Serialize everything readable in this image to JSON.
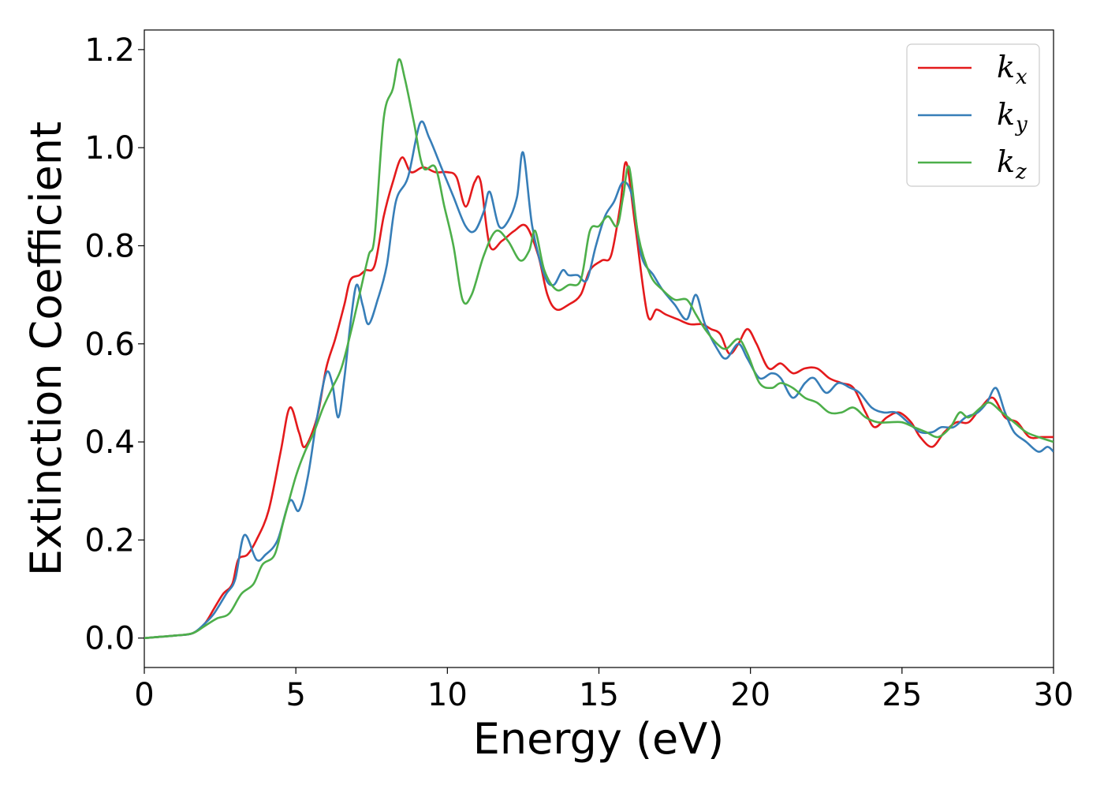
{
  "chart_data": {
    "type": "line",
    "xlabel": "Energy (eV)",
    "ylabel": "Extinction Coefficient",
    "xlim": [
      0,
      30
    ],
    "ylim": [
      -0.06,
      1.24
    ],
    "xticks": [
      0,
      5,
      10,
      15,
      20,
      25,
      30
    ],
    "yticks": [
      0.0,
      0.2,
      0.4,
      0.6,
      0.8,
      1.0,
      1.2
    ],
    "xtick_labels": [
      "0",
      "5",
      "10",
      "15",
      "20",
      "25",
      "30"
    ],
    "ytick_labels": [
      "0.0",
      "0.2",
      "0.4",
      "0.6",
      "0.8",
      "1.0",
      "1.2"
    ],
    "grid": false,
    "legend_position": "top-right",
    "series": [
      {
        "name": "kx",
        "label_main": "k",
        "label_sub": "x",
        "color": "#e41a1c",
        "points": [
          [
            0,
            0
          ],
          [
            1,
            0.005
          ],
          [
            1.6,
            0.01
          ],
          [
            2,
            0.03
          ],
          [
            2.3,
            0.06
          ],
          [
            2.6,
            0.09
          ],
          [
            2.9,
            0.11
          ],
          [
            3.1,
            0.16
          ],
          [
            3.4,
            0.17
          ],
          [
            3.7,
            0.2
          ],
          [
            4.1,
            0.26
          ],
          [
            4.5,
            0.38
          ],
          [
            4.8,
            0.47
          ],
          [
            5.1,
            0.42
          ],
          [
            5.3,
            0.39
          ],
          [
            5.7,
            0.45
          ],
          [
            6.0,
            0.55
          ],
          [
            6.3,
            0.61
          ],
          [
            6.6,
            0.68
          ],
          [
            6.8,
            0.73
          ],
          [
            7.1,
            0.74
          ],
          [
            7.3,
            0.75
          ],
          [
            7.6,
            0.76
          ],
          [
            7.9,
            0.86
          ],
          [
            8.2,
            0.93
          ],
          [
            8.5,
            0.98
          ],
          [
            8.8,
            0.95
          ],
          [
            9.2,
            0.96
          ],
          [
            9.6,
            0.95
          ],
          [
            10.0,
            0.95
          ],
          [
            10.3,
            0.94
          ],
          [
            10.6,
            0.88
          ],
          [
            10.9,
            0.93
          ],
          [
            11.1,
            0.93
          ],
          [
            11.4,
            0.8
          ],
          [
            11.8,
            0.81
          ],
          [
            12.2,
            0.83
          ],
          [
            12.6,
            0.84
          ],
          [
            13.0,
            0.78
          ],
          [
            13.3,
            0.7
          ],
          [
            13.6,
            0.67
          ],
          [
            14.0,
            0.68
          ],
          [
            14.4,
            0.7
          ],
          [
            14.7,
            0.75
          ],
          [
            15.1,
            0.77
          ],
          [
            15.4,
            0.78
          ],
          [
            15.7,
            0.88
          ],
          [
            15.9,
            0.97
          ],
          [
            16.2,
            0.84
          ],
          [
            16.6,
            0.66
          ],
          [
            16.9,
            0.67
          ],
          [
            17.2,
            0.66
          ],
          [
            17.6,
            0.65
          ],
          [
            18.0,
            0.64
          ],
          [
            18.4,
            0.64
          ],
          [
            18.7,
            0.63
          ],
          [
            19.0,
            0.62
          ],
          [
            19.3,
            0.58
          ],
          [
            19.6,
            0.6
          ],
          [
            19.9,
            0.63
          ],
          [
            20.2,
            0.6
          ],
          [
            20.6,
            0.55
          ],
          [
            21.0,
            0.56
          ],
          [
            21.4,
            0.54
          ],
          [
            21.8,
            0.55
          ],
          [
            22.2,
            0.55
          ],
          [
            22.6,
            0.53
          ],
          [
            23.0,
            0.52
          ],
          [
            23.4,
            0.51
          ],
          [
            23.8,
            0.46
          ],
          [
            24.1,
            0.43
          ],
          [
            24.5,
            0.45
          ],
          [
            24.9,
            0.46
          ],
          [
            25.3,
            0.44
          ],
          [
            25.6,
            0.41
          ],
          [
            26.0,
            0.39
          ],
          [
            26.4,
            0.42
          ],
          [
            26.8,
            0.44
          ],
          [
            27.2,
            0.44
          ],
          [
            27.6,
            0.47
          ],
          [
            28.0,
            0.49
          ],
          [
            28.4,
            0.45
          ],
          [
            28.8,
            0.44
          ],
          [
            29.2,
            0.41
          ],
          [
            29.6,
            0.41
          ],
          [
            30,
            0.41
          ]
        ]
      },
      {
        "name": "ky",
        "label_main": "k",
        "label_sub": "y",
        "color": "#377eb8",
        "points": [
          [
            0,
            0
          ],
          [
            1,
            0.005
          ],
          [
            1.6,
            0.01
          ],
          [
            2,
            0.03
          ],
          [
            2.3,
            0.05
          ],
          [
            2.7,
            0.09
          ],
          [
            3.0,
            0.12
          ],
          [
            3.3,
            0.21
          ],
          [
            3.7,
            0.16
          ],
          [
            4.0,
            0.17
          ],
          [
            4.4,
            0.2
          ],
          [
            4.8,
            0.28
          ],
          [
            5.1,
            0.26
          ],
          [
            5.4,
            0.33
          ],
          [
            5.7,
            0.45
          ],
          [
            6.0,
            0.54
          ],
          [
            6.2,
            0.52
          ],
          [
            6.4,
            0.45
          ],
          [
            6.6,
            0.53
          ],
          [
            6.8,
            0.64
          ],
          [
            7.0,
            0.72
          ],
          [
            7.2,
            0.68
          ],
          [
            7.4,
            0.64
          ],
          [
            7.7,
            0.69
          ],
          [
            8.0,
            0.76
          ],
          [
            8.3,
            0.89
          ],
          [
            8.7,
            0.94
          ],
          [
            9.1,
            1.05
          ],
          [
            9.4,
            1.02
          ],
          [
            9.8,
            0.96
          ],
          [
            10.2,
            0.9
          ],
          [
            10.6,
            0.84
          ],
          [
            10.9,
            0.83
          ],
          [
            11.2,
            0.87
          ],
          [
            11.4,
            0.91
          ],
          [
            11.7,
            0.84
          ],
          [
            12.0,
            0.85
          ],
          [
            12.3,
            0.9
          ],
          [
            12.5,
            0.99
          ],
          [
            12.8,
            0.84
          ],
          [
            13.2,
            0.74
          ],
          [
            13.5,
            0.72
          ],
          [
            13.8,
            0.75
          ],
          [
            14.0,
            0.74
          ],
          [
            14.3,
            0.74
          ],
          [
            14.6,
            0.73
          ],
          [
            14.9,
            0.8
          ],
          [
            15.2,
            0.86
          ],
          [
            15.5,
            0.89
          ],
          [
            15.8,
            0.93
          ],
          [
            16.1,
            0.9
          ],
          [
            16.4,
            0.78
          ],
          [
            16.8,
            0.74
          ],
          [
            17.1,
            0.71
          ],
          [
            17.5,
            0.68
          ],
          [
            17.9,
            0.65
          ],
          [
            18.2,
            0.7
          ],
          [
            18.5,
            0.64
          ],
          [
            18.9,
            0.59
          ],
          [
            19.2,
            0.57
          ],
          [
            19.6,
            0.6
          ],
          [
            19.9,
            0.57
          ],
          [
            20.3,
            0.53
          ],
          [
            20.7,
            0.54
          ],
          [
            21.0,
            0.53
          ],
          [
            21.4,
            0.49
          ],
          [
            21.8,
            0.52
          ],
          [
            22.1,
            0.53
          ],
          [
            22.5,
            0.5
          ],
          [
            22.9,
            0.52
          ],
          [
            23.3,
            0.51
          ],
          [
            23.6,
            0.5
          ],
          [
            24.0,
            0.47
          ],
          [
            24.4,
            0.46
          ],
          [
            24.8,
            0.46
          ],
          [
            25.2,
            0.44
          ],
          [
            25.6,
            0.42
          ],
          [
            26.0,
            0.42
          ],
          [
            26.3,
            0.43
          ],
          [
            26.7,
            0.43
          ],
          [
            27.1,
            0.45
          ],
          [
            27.5,
            0.46
          ],
          [
            27.8,
            0.48
          ],
          [
            28.1,
            0.51
          ],
          [
            28.4,
            0.46
          ],
          [
            28.7,
            0.42
          ],
          [
            29.1,
            0.4
          ],
          [
            29.5,
            0.38
          ],
          [
            29.8,
            0.39
          ],
          [
            30,
            0.38
          ]
        ]
      },
      {
        "name": "kz",
        "label_main": "k",
        "label_sub": "z",
        "color": "#4daf4a",
        "points": [
          [
            0,
            0
          ],
          [
            1,
            0.005
          ],
          [
            1.6,
            0.01
          ],
          [
            2,
            0.025
          ],
          [
            2.4,
            0.04
          ],
          [
            2.8,
            0.05
          ],
          [
            3.2,
            0.09
          ],
          [
            3.6,
            0.11
          ],
          [
            3.9,
            0.15
          ],
          [
            4.3,
            0.17
          ],
          [
            4.6,
            0.24
          ],
          [
            5.0,
            0.33
          ],
          [
            5.3,
            0.38
          ],
          [
            5.6,
            0.42
          ],
          [
            5.9,
            0.47
          ],
          [
            6.2,
            0.51
          ],
          [
            6.5,
            0.55
          ],
          [
            6.8,
            0.62
          ],
          [
            7.1,
            0.7
          ],
          [
            7.4,
            0.78
          ],
          [
            7.6,
            0.82
          ],
          [
            7.9,
            1.06
          ],
          [
            8.2,
            1.12
          ],
          [
            8.4,
            1.18
          ],
          [
            8.6,
            1.14
          ],
          [
            8.9,
            1.05
          ],
          [
            9.2,
            0.96
          ],
          [
            9.6,
            0.96
          ],
          [
            9.9,
            0.88
          ],
          [
            10.2,
            0.8
          ],
          [
            10.5,
            0.69
          ],
          [
            10.8,
            0.7
          ],
          [
            11.2,
            0.78
          ],
          [
            11.6,
            0.83
          ],
          [
            12.0,
            0.81
          ],
          [
            12.4,
            0.77
          ],
          [
            12.7,
            0.79
          ],
          [
            12.9,
            0.83
          ],
          [
            13.2,
            0.75
          ],
          [
            13.6,
            0.71
          ],
          [
            14.0,
            0.72
          ],
          [
            14.4,
            0.73
          ],
          [
            14.7,
            0.83
          ],
          [
            15.0,
            0.84
          ],
          [
            15.3,
            0.86
          ],
          [
            15.6,
            0.84
          ],
          [
            15.8,
            0.9
          ],
          [
            16.0,
            0.96
          ],
          [
            16.3,
            0.82
          ],
          [
            16.7,
            0.74
          ],
          [
            17.1,
            0.71
          ],
          [
            17.5,
            0.69
          ],
          [
            17.9,
            0.69
          ],
          [
            18.2,
            0.66
          ],
          [
            18.5,
            0.63
          ],
          [
            18.9,
            0.6
          ],
          [
            19.2,
            0.59
          ],
          [
            19.6,
            0.61
          ],
          [
            19.9,
            0.58
          ],
          [
            20.3,
            0.52
          ],
          [
            20.7,
            0.51
          ],
          [
            21.0,
            0.52
          ],
          [
            21.4,
            0.51
          ],
          [
            21.8,
            0.49
          ],
          [
            22.2,
            0.48
          ],
          [
            22.6,
            0.46
          ],
          [
            23.0,
            0.46
          ],
          [
            23.4,
            0.47
          ],
          [
            23.8,
            0.45
          ],
          [
            24.2,
            0.44
          ],
          [
            24.6,
            0.44
          ],
          [
            25.0,
            0.44
          ],
          [
            25.4,
            0.43
          ],
          [
            25.8,
            0.42
          ],
          [
            26.2,
            0.41
          ],
          [
            26.6,
            0.43
          ],
          [
            26.9,
            0.46
          ],
          [
            27.2,
            0.45
          ],
          [
            27.6,
            0.47
          ],
          [
            27.9,
            0.48
          ],
          [
            28.3,
            0.46
          ],
          [
            28.7,
            0.44
          ],
          [
            29.1,
            0.42
          ],
          [
            29.5,
            0.41
          ],
          [
            30,
            0.4
          ]
        ]
      }
    ]
  }
}
